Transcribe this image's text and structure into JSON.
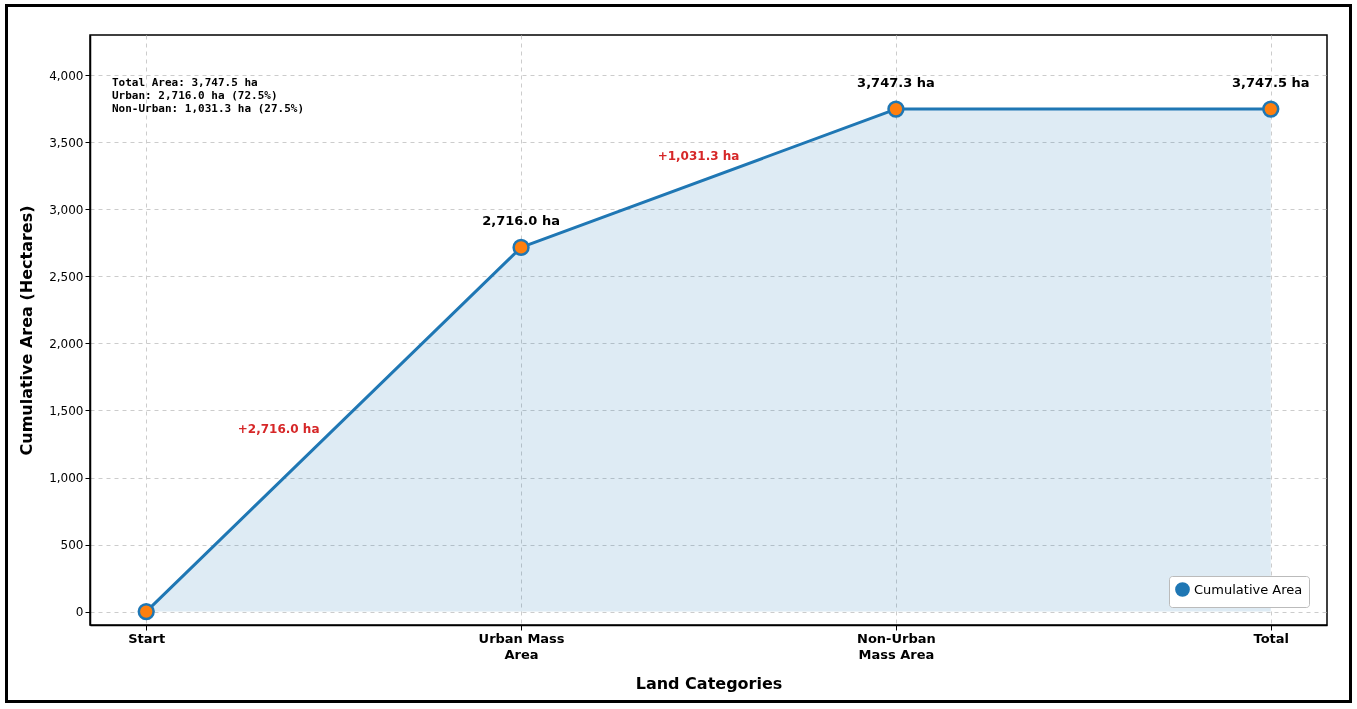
{
  "chart_data": {
    "type": "area",
    "xlabel": "Land Categories",
    "ylabel": "Cumulative Area (Hectares)",
    "categories": [
      "Start",
      "Urban Mass\nArea",
      "Non-Urban\nMass Area",
      "Total"
    ],
    "series": [
      {
        "name": "Cumulative Area",
        "color": "#1f77b4",
        "values": [
          0,
          2716.0,
          3747.3,
          3747.5
        ],
        "value_labels": [
          null,
          "2,716.0 ha",
          "3,747.3 ha",
          "3,747.5 ha"
        ]
      }
    ],
    "ylim": [
      -100,
      4300
    ],
    "yticks": [
      {
        "value": 0,
        "label": "0"
      },
      {
        "value": 500,
        "label": "500"
      },
      {
        "value": 1000,
        "label": "1,000"
      },
      {
        "value": 1500,
        "label": "1,500"
      },
      {
        "value": 2000,
        "label": "2,000"
      },
      {
        "value": 2500,
        "label": "2,500"
      },
      {
        "value": 3000,
        "label": "3,000"
      },
      {
        "value": 3500,
        "label": "3,500"
      },
      {
        "value": 4000,
        "label": "4,000"
      }
    ],
    "grid": true,
    "legend": "bottom right",
    "marker": "circle",
    "line_style": "solid",
    "annotations": [
      "Total Area: 3,747.5 ha\nUrban: 2,716.0 ha (72.5%)\nNon-Urban: 1,031.3 ha (27.5%)",
      "+2,716.0 ha",
      "+1,031.3 ha"
    ]
  }
}
